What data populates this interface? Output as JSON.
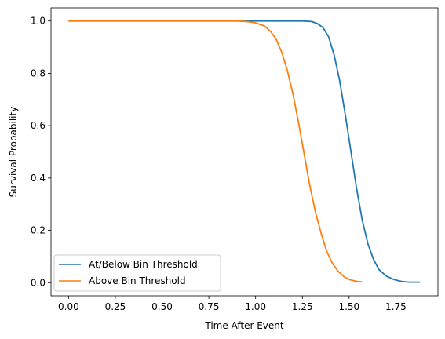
{
  "chart_data": {
    "type": "line",
    "title": "",
    "xlabel": "Time After Event",
    "ylabel": "Survival Probability",
    "xlim": [
      -0.094,
      1.975
    ],
    "ylim": [
      -0.05,
      1.05
    ],
    "xticks": [
      0.0,
      0.25,
      0.5,
      0.75,
      1.0,
      1.25,
      1.5,
      1.75
    ],
    "xtick_labels": [
      "0.00",
      "0.25",
      "0.50",
      "0.75",
      "1.00",
      "1.25",
      "1.50",
      "1.75"
    ],
    "yticks": [
      0.0,
      0.2,
      0.4,
      0.6,
      0.8,
      1.0
    ],
    "ytick_labels": [
      "0.0",
      "0.2",
      "0.4",
      "0.6",
      "0.8",
      "1.0"
    ],
    "grid": false,
    "legend_position": "lower-left",
    "series": [
      {
        "name": "At/Below Bin Threshold",
        "color": "#1f77b4",
        "x": [
          0.0,
          1.2,
          1.25,
          1.3,
          1.33,
          1.36,
          1.39,
          1.42,
          1.45,
          1.48,
          1.51,
          1.54,
          1.57,
          1.6,
          1.63,
          1.66,
          1.7,
          1.74,
          1.78,
          1.82,
          1.88
        ],
        "y": [
          1.0,
          1.0,
          1.0,
          0.998,
          0.99,
          0.975,
          0.94,
          0.87,
          0.77,
          0.64,
          0.5,
          0.36,
          0.24,
          0.15,
          0.09,
          0.05,
          0.025,
          0.012,
          0.005,
          0.002,
          0.002
        ]
      },
      {
        "name": "Above Bin Threshold",
        "color": "#ff7f0e",
        "x": [
          0.0,
          0.9,
          0.95,
          1.0,
          1.05,
          1.08,
          1.11,
          1.14,
          1.17,
          1.2,
          1.23,
          1.26,
          1.29,
          1.32,
          1.35,
          1.38,
          1.41,
          1.44,
          1.47,
          1.5,
          1.54,
          1.57
        ],
        "y": [
          1.0,
          1.0,
          0.998,
          0.993,
          0.98,
          0.96,
          0.93,
          0.88,
          0.81,
          0.72,
          0.61,
          0.49,
          0.37,
          0.27,
          0.19,
          0.12,
          0.075,
          0.045,
          0.025,
          0.012,
          0.005,
          0.003
        ]
      }
    ]
  }
}
